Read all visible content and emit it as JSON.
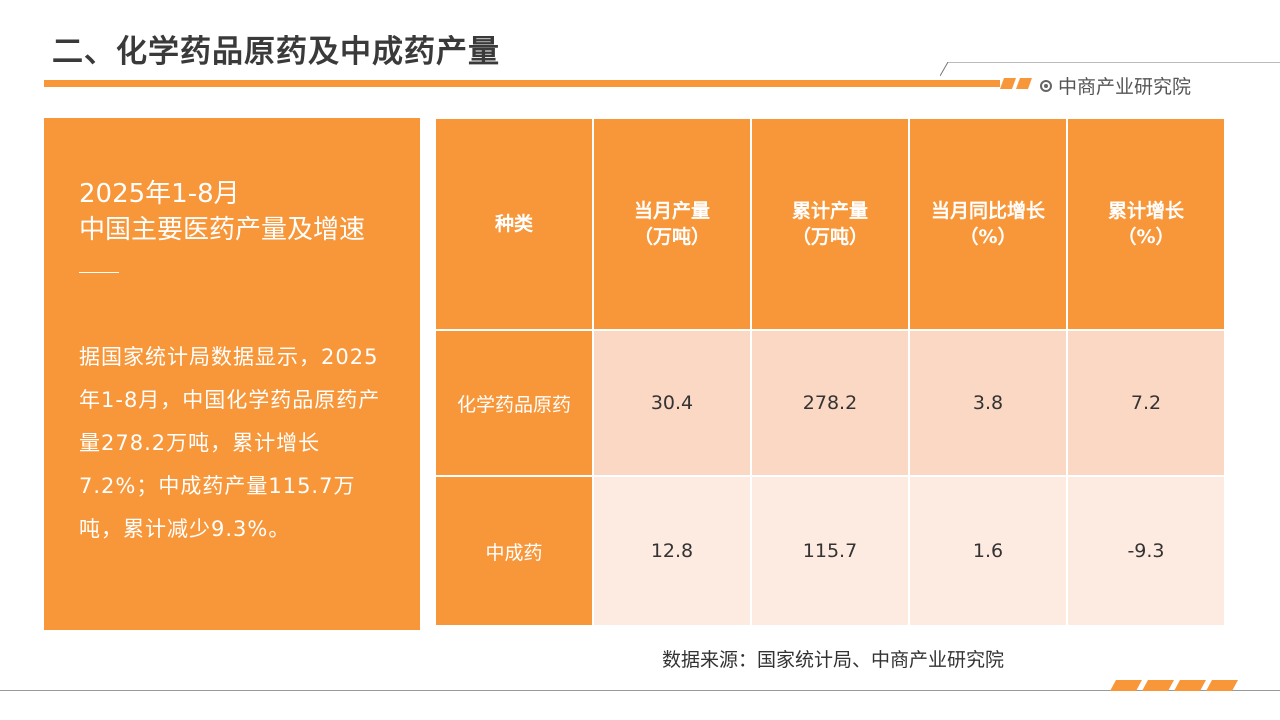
{
  "header": {
    "title": "二、化学药品原药及中成药产量",
    "brand": "中商产业研究院",
    "brand_icon": "circle-dot-icon",
    "accent_color": "#f7973a"
  },
  "left_panel": {
    "heading_line1": "2025年1-8月",
    "heading_line2": "中国主要医药产量及增速",
    "body": "据国家统计局数据显示，2025年1-8月，中国化学药品原药产量278.2万吨，累计增长7.2%；中成药产量115.7万吨，累计减少9.3%。"
  },
  "table": {
    "headers": [
      {
        "line1": "种类",
        "line2": ""
      },
      {
        "line1": "当月产量",
        "line2": "（万吨）"
      },
      {
        "line1": "累计产量",
        "line2": "（万吨）"
      },
      {
        "line1": "当月同比增长",
        "line2": "（%）"
      },
      {
        "line1": "累计增长",
        "line2": "（%）"
      }
    ],
    "rows": [
      {
        "category": "化学药品原药",
        "monthly": "30.4",
        "cumulative": "278.2",
        "monthly_yoy": "3.8",
        "cumulative_growth": "7.2"
      },
      {
        "category": "中成药",
        "monthly": "12.8",
        "cumulative": "115.7",
        "monthly_yoy": "1.6",
        "cumulative_growth": "-9.3"
      }
    ]
  },
  "footer": {
    "source": "数据来源：国家统计局、中商产业研究院"
  }
}
